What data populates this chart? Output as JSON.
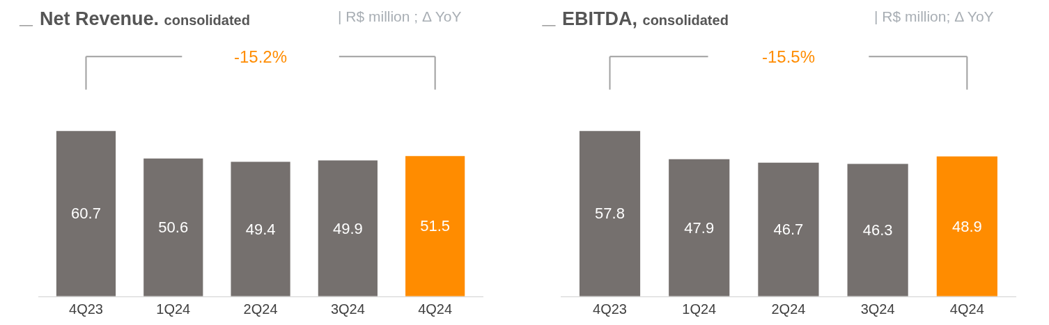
{
  "chart_data": [
    {
      "type": "bar",
      "title": "Net Revenue.",
      "subtitle": "consolidated",
      "annotations": [
        "| R$ million ; Δ YoY",
        "-15.2%"
      ],
      "categories": [
        "4Q23",
        "1Q24",
        "2Q24",
        "3Q24",
        "4Q24"
      ],
      "values": [
        60.7,
        50.6,
        49.4,
        49.9,
        51.5
      ],
      "colors": [
        "#75706e",
        "#75706e",
        "#75706e",
        "#75706e",
        "#ff8c00"
      ],
      "data_labels": true
    },
    {
      "type": "bar",
      "title": "EBITDA,",
      "subtitle": "consolidated",
      "annotations": [
        "| R$ million; Δ YoY",
        "-15.5%"
      ],
      "categories": [
        "4Q23",
        "1Q24",
        "2Q24",
        "3Q24",
        "4Q24"
      ],
      "values": [
        57.8,
        47.9,
        46.7,
        46.3,
        48.9
      ],
      "colors": [
        "#75706e",
        "#75706e",
        "#75706e",
        "#75706e",
        "#ff8c00"
      ],
      "data_labels": true
    }
  ]
}
